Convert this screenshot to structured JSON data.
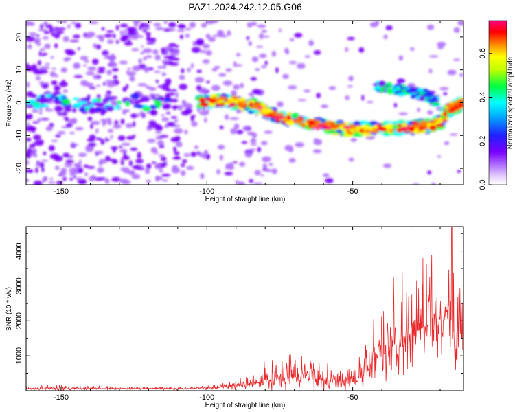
{
  "title": "PAZ1.2024.242.12.05.G06",
  "chart_data": [
    {
      "type": "heatmap",
      "xlabel": "Height of straight line (km)",
      "ylabel": "Frequency (Hz)",
      "xlim": [
        -162,
        -12
      ],
      "ylim": [
        -25,
        25
      ],
      "xticks": [
        -150,
        -100,
        -50
      ],
      "yticks": [
        -20,
        -10,
        0,
        10,
        20
      ],
      "grid": false,
      "colorbar": {
        "label": "Normalized spectral amplitude",
        "range": [
          0,
          0.75
        ],
        "ticks": [
          0.0,
          0.2,
          0.4,
          0.6
        ],
        "colors": [
          "#ffffff",
          "#b070ff",
          "#7a00ff",
          "#2020ff",
          "#00ffff",
          "#00ff40",
          "#ffff00",
          "#ff8000",
          "#ff0000",
          "#ff0080"
        ]
      },
      "ridge": [
        [
          -103,
          0
        ],
        [
          -95,
          0.5
        ],
        [
          -88,
          0
        ],
        [
          -82,
          -1.5
        ],
        [
          -77,
          -4
        ],
        [
          -70,
          -5.5
        ],
        [
          -60,
          -7
        ],
        [
          -52,
          -8
        ],
        [
          -45,
          -8
        ],
        [
          -38,
          -8
        ],
        [
          -30,
          -7.5
        ],
        [
          -24,
          -7
        ],
        [
          -20,
          -6
        ],
        [
          -17,
          -2
        ],
        [
          -14,
          -1
        ],
        [
          -12,
          0
        ]
      ],
      "upper_branch": [
        [
          -42,
          5
        ],
        [
          -35,
          4
        ],
        [
          -28,
          3
        ],
        [
          -24,
          2
        ],
        [
          -21,
          0
        ]
      ]
    },
    {
      "type": "line",
      "xlabel": "Height of straight line (km)",
      "ylabel": "SNR (10 * v/v)",
      "xlim": [
        -162,
        -12
      ],
      "ylim": [
        0,
        4700
      ],
      "xticks": [
        -150,
        -100,
        -50
      ],
      "yticks": [
        1000,
        2000,
        3000,
        4000
      ],
      "grid": false,
      "series": [
        {
          "color": "#e8282a",
          "x": [
            -162,
            -150,
            -140,
            -130,
            -120,
            -110,
            -100,
            -95,
            -90,
            -85,
            -80,
            -75,
            -70,
            -65,
            -60,
            -55,
            -50,
            -47,
            -44,
            -41,
            -38,
            -35,
            -32,
            -29,
            -26,
            -23,
            -20,
            -18,
            -16,
            -14,
            -12
          ],
          "base": [
            60,
            60,
            70,
            60,
            60,
            60,
            80,
            100,
            150,
            200,
            300,
            350,
            400,
            400,
            300,
            250,
            250,
            350,
            700,
            1000,
            1200,
            1400,
            1600,
            1800,
            1800,
            2000,
            2000,
            2200,
            1700,
            1400,
            1600
          ],
          "amp": [
            80,
            150,
            100,
            80,
            70,
            80,
            100,
            150,
            250,
            300,
            600,
            700,
            800,
            700,
            600,
            500,
            500,
            800,
            1300,
            1600,
            1900,
            2200,
            2400,
            2600,
            2600,
            2700,
            2700,
            2800,
            2500,
            2000,
            1800
          ],
          "peak": [
            -16,
            4700
          ]
        }
      ]
    }
  ]
}
